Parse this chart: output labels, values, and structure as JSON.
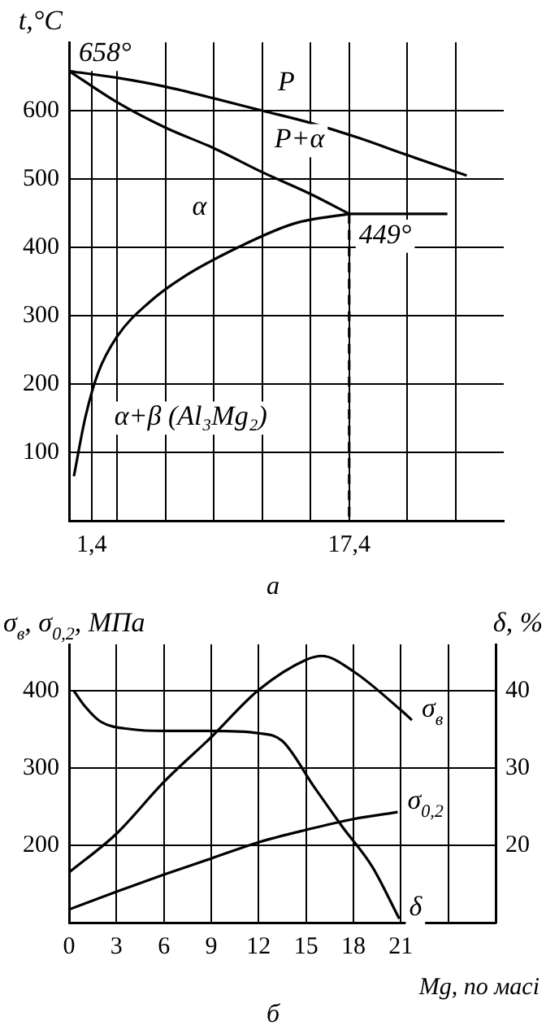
{
  "chart_data": [
    {
      "type": "line",
      "ylabel": "t,°C",
      "xlim": [
        0,
        27
      ],
      "ylim": [
        0,
        700
      ],
      "marker": "none",
      "grid": true,
      "legend": false,
      "xticks": [
        {
          "value": 1.4,
          "label": "1,4"
        },
        {
          "value": 3,
          "label": null
        },
        {
          "value": 6,
          "label": null
        },
        {
          "value": 9,
          "label": null
        },
        {
          "value": 12,
          "label": null
        },
        {
          "value": 15,
          "label": null
        },
        {
          "value": 17.4,
          "label": "17,4"
        },
        {
          "value": 21,
          "label": null
        },
        {
          "value": 24,
          "label": null
        }
      ],
      "yticks": [
        100,
        200,
        300,
        400,
        500,
        600
      ],
      "series": [
        {
          "color": "#000000",
          "x": [
            0,
            3,
            6,
            9,
            12,
            15,
            18,
            21,
            24.7
          ],
          "values": [
            658,
            648,
            635,
            618,
            600,
            582,
            560,
            535,
            505
          ]
        },
        {
          "color": "#000000",
          "x": [
            0,
            3,
            6,
            9,
            12,
            15,
            17.4
          ],
          "values": [
            658,
            612,
            575,
            545,
            510,
            478,
            449
          ]
        },
        {
          "color": "#000000",
          "x": [
            0.3,
            1,
            1.8,
            3,
            5,
            7,
            10.5,
            14,
            17.4
          ],
          "values": [
            65,
            150,
            216,
            270,
            320,
            355,
            400,
            435,
            449
          ]
        },
        {
          "color": "#000000",
          "x": [
            17.4,
            23.5
          ],
          "values": [
            449,
            449
          ]
        },
        {
          "color": "#000000",
          "x": [
            17.4,
            17.4
          ],
          "values": [
            449,
            0
          ],
          "line_style": "dashed"
        }
      ],
      "annotations": [
        {
          "text": "658°",
          "x": 0,
          "y": 658
        },
        {
          "text": "449°",
          "x": 17.4,
          "y": 449
        },
        "P",
        "P+α",
        "α",
        "α+β (Al₃Mg₂)",
        "а"
      ]
    },
    {
      "type": "line",
      "ylabel": "σ$_{в}$, σ$_{0,2}$, МПа",
      "y2label": "δ, %",
      "xlabel": "Mg, по масі",
      "xlim": [
        0,
        27
      ],
      "ylim": [
        100,
        460
      ],
      "y2lim": [
        10,
        46
      ],
      "marker": "none",
      "grid": true,
      "legend": false,
      "xticks": [
        0,
        3,
        6,
        9,
        12,
        15,
        18,
        21,
        {
          "value": 24,
          "label": null
        }
      ],
      "yticks": [
        200,
        300,
        400
      ],
      "y2ticks": [
        20,
        30,
        40
      ],
      "series": [
        {
          "name": "σ$_{в}$",
          "color": "#000000",
          "x": [
            0,
            3,
            6,
            9,
            12,
            15,
            16,
            18,
            21,
            21.7
          ],
          "values": [
            165,
            215,
            282,
            340,
            401,
            440,
            445,
            425,
            375,
            362
          ]
        },
        {
          "name": "σ$_{0,2}$",
          "color": "#000000",
          "x": [
            0,
            3,
            6,
            9,
            12,
            15,
            18,
            20.8
          ],
          "values": [
            117,
            140,
            162,
            183,
            204,
            220,
            234,
            243
          ]
        },
        {
          "name": "δ",
          "color": "#000000",
          "axis": "y2",
          "x": [
            0.3,
            1,
            2,
            4,
            6,
            9,
            12,
            13.5,
            15.5,
            17.3,
            19.2,
            20.9
          ],
          "values": [
            40,
            38,
            36,
            35,
            34.8,
            34.8,
            34.5,
            33.5,
            27.6,
            22.4,
            17.2,
            10.5
          ]
        }
      ],
      "annotations": [
        "б"
      ]
    }
  ]
}
